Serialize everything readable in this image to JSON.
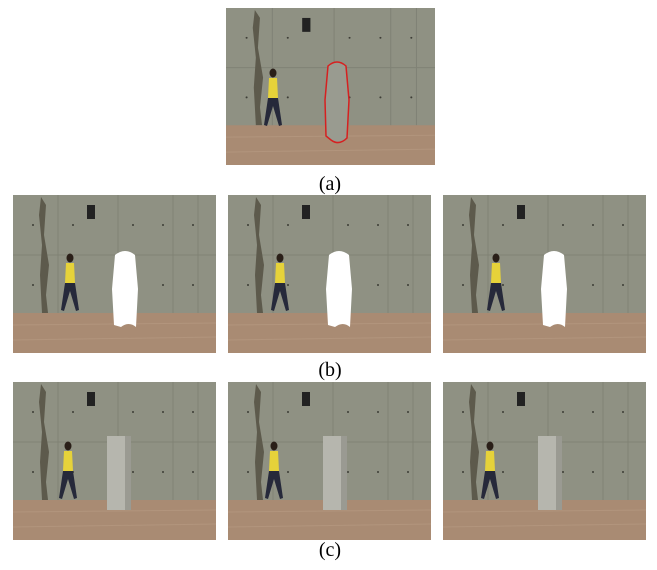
{
  "figure": {
    "labels": [
      "(a)",
      "(b)",
      "(c)"
    ]
  }
}
